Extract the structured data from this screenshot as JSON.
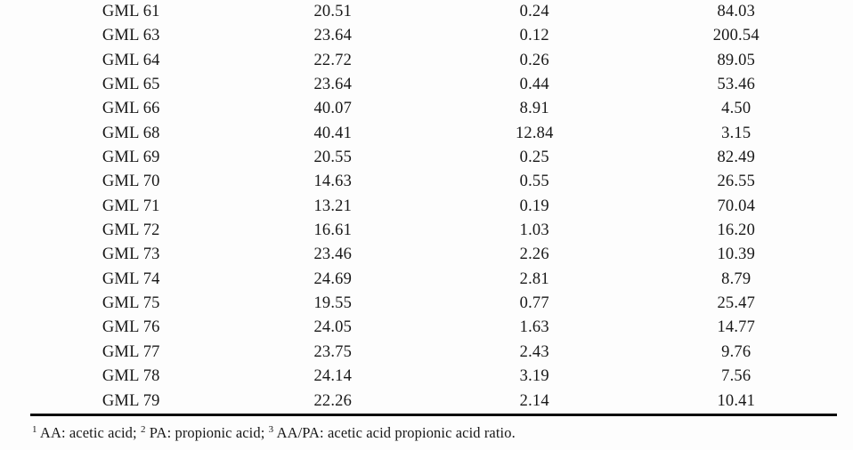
{
  "colors": {
    "text": "#181818",
    "rule": "#0a0a0a",
    "background": "#fdfdfd"
  },
  "table": {
    "rows": [
      [
        "GML 61",
        "20.51",
        "0.24",
        "84.03"
      ],
      [
        "GML 63",
        "23.64",
        "0.12",
        "200.54"
      ],
      [
        "GML 64",
        "22.72",
        "0.26",
        "89.05"
      ],
      [
        "GML 65",
        "23.64",
        "0.44",
        "53.46"
      ],
      [
        "GML 66",
        "40.07",
        "8.91",
        "4.50"
      ],
      [
        "GML 68",
        "40.41",
        "12.84",
        "3.15"
      ],
      [
        "GML 69",
        "20.55",
        "0.25",
        "82.49"
      ],
      [
        "GML 70",
        "14.63",
        "0.55",
        "26.55"
      ],
      [
        "GML 71",
        "13.21",
        "0.19",
        "70.04"
      ],
      [
        "GML 72",
        "16.61",
        "1.03",
        "16.20"
      ],
      [
        "GML 73",
        "23.46",
        "2.26",
        "10.39"
      ],
      [
        "GML 74",
        "24.69",
        "2.81",
        "8.79"
      ],
      [
        "GML 75",
        "19.55",
        "0.77",
        "25.47"
      ],
      [
        "GML 76",
        "24.05",
        "1.63",
        "14.77"
      ],
      [
        "GML 77",
        "23.75",
        "2.43",
        "9.76"
      ],
      [
        "GML 78",
        "24.14",
        "3.19",
        "7.56"
      ],
      [
        "GML 79",
        "22.26",
        "2.14",
        "10.41"
      ]
    ]
  },
  "footnote": {
    "parts": [
      {
        "sup": "1",
        "text": " AA: acetic acid; "
      },
      {
        "sup": "2",
        "text": " PA: propionic acid; "
      },
      {
        "sup": "3",
        "text": " AA/PA: acetic acid propionic acid ratio."
      }
    ]
  }
}
